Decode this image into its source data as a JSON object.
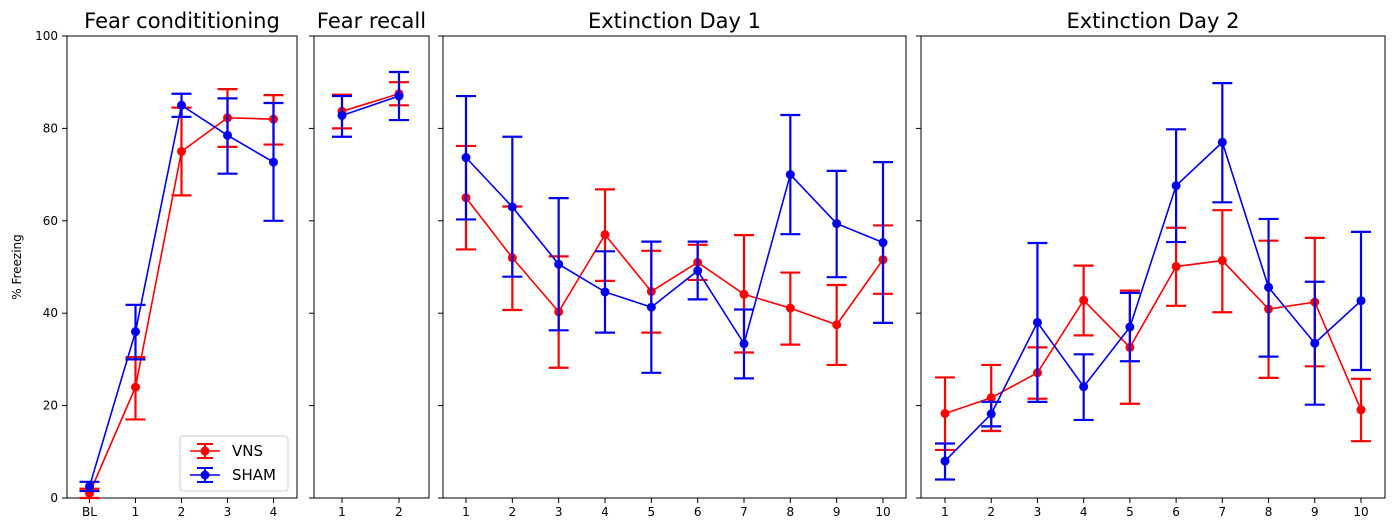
{
  "chart_data": [
    {
      "type": "line",
      "title": "Fear condititioning",
      "ylabel": "% Freezing",
      "ylim": [
        0,
        100
      ],
      "yticks": [
        "0",
        "20",
        "40",
        "60",
        "80",
        "100"
      ],
      "categories": [
        "BL",
        "1",
        "2",
        "3",
        "4"
      ],
      "series": [
        {
          "name": "VNS",
          "color": "#ff0000",
          "values": [
            1,
            24,
            75,
            82.3,
            82
          ],
          "err_low": [
            0,
            17,
            65.5,
            76,
            76.5
          ],
          "err_high": [
            2,
            30.5,
            84.5,
            88.5,
            87.2
          ]
        },
        {
          "name": "SHAM",
          "color": "#0000ee",
          "values": [
            2.5,
            36,
            85,
            78.5,
            72.7
          ],
          "err_low": [
            1.5,
            30,
            82.5,
            70.2,
            60
          ],
          "err_high": [
            3.5,
            41.8,
            87.5,
            86.5,
            85.5
          ]
        }
      ],
      "legend": "lower-right"
    },
    {
      "type": "line",
      "title": "Fear recall",
      "ylim": [
        0,
        100
      ],
      "categories": [
        "1",
        "2"
      ],
      "series": [
        {
          "name": "VNS",
          "color": "#ff0000",
          "values": [
            83.7,
            87.5
          ],
          "err_low": [
            80,
            85
          ],
          "err_high": [
            87.3,
            90
          ]
        },
        {
          "name": "SHAM",
          "color": "#0000ee",
          "values": [
            82.8,
            87
          ],
          "err_low": [
            78.2,
            81.8
          ],
          "err_high": [
            87,
            92.2
          ]
        }
      ]
    },
    {
      "type": "line",
      "title": "Extinction Day 1",
      "ylim": [
        0,
        100
      ],
      "categories": [
        "1",
        "2",
        "3",
        "4",
        "5",
        "6",
        "7",
        "8",
        "9",
        "10"
      ],
      "series": [
        {
          "name": "VNS",
          "color": "#ff0000",
          "values": [
            65,
            52,
            40.3,
            57,
            44.7,
            51,
            44.1,
            41.1,
            37.5,
            51.6
          ],
          "err_low": [
            53.8,
            40.7,
            28.2,
            47,
            35.8,
            47.2,
            31.5,
            33.2,
            28.8,
            44.2
          ],
          "err_high": [
            76.2,
            63.1,
            52.3,
            66.8,
            53.5,
            54.8,
            56.9,
            48.8,
            46.1,
            59
          ]
        },
        {
          "name": "SHAM",
          "color": "#0000ee",
          "values": [
            73.7,
            63,
            50.6,
            44.6,
            41.3,
            49.2,
            33.4,
            70,
            59.4,
            55.3
          ],
          "err_low": [
            60.3,
            47.9,
            36.3,
            35.8,
            27.1,
            43,
            25.9,
            57.1,
            47.8,
            37.9
          ],
          "err_high": [
            87,
            78.2,
            64.9,
            53.4,
            55.5,
            55.5,
            40.8,
            82.9,
            70.8,
            72.7
          ]
        }
      ]
    },
    {
      "type": "line",
      "title": "Extinction Day 2",
      "ylim": [
        0,
        100
      ],
      "categories": [
        "1",
        "2",
        "3",
        "4",
        "5",
        "6",
        "7",
        "8",
        "9",
        "10"
      ],
      "series": [
        {
          "name": "VNS",
          "color": "#ff0000",
          "values": [
            18.3,
            21.7,
            27.1,
            42.8,
            32.6,
            50.1,
            51.4,
            40.9,
            42.4,
            19.1
          ],
          "err_low": [
            10.4,
            14.5,
            21.5,
            35.2,
            20.4,
            41.6,
            40.2,
            26,
            28.5,
            12.3
          ],
          "err_high": [
            26.1,
            28.8,
            32.6,
            50.3,
            44.9,
            58.5,
            62.3,
            55.7,
            56.3,
            25.8
          ]
        },
        {
          "name": "SHAM",
          "color": "#0000ee",
          "values": [
            8,
            18.2,
            38,
            24.1,
            37,
            67.6,
            77,
            45.6,
            33.5,
            42.7
          ],
          "err_low": [
            4,
            15.5,
            20.8,
            16.9,
            29.6,
            55.4,
            64,
            30.6,
            20.2,
            27.7
          ],
          "err_high": [
            11.8,
            20.8,
            55.2,
            31.1,
            44.4,
            79.8,
            89.8,
            60.4,
            46.8,
            57.6
          ]
        }
      ]
    }
  ]
}
